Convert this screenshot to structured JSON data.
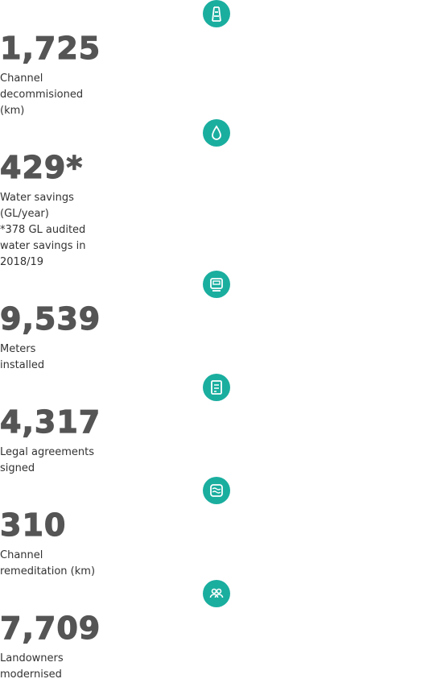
{
  "stats": [
    {
      "value": "1,725",
      "label": [
        "Channel",
        "decommisioned",
        "(km)"
      ]
    },
    {
      "value": "429*",
      "label": [
        "Water savings",
        "(GL/year)",
        "*378 GL audited",
        "water savings in",
        "2018/19"
      ]
    },
    {
      "value": "9,539",
      "label": [
        "Meters",
        "installed"
      ]
    },
    {
      "value": "4,317",
      "label": [
        "Legal agreements",
        "signed"
      ]
    },
    {
      "value": "310",
      "label": [
        "Channel",
        "remeditation (km)"
      ]
    },
    {
      "value": "7,709",
      "label": [
        "Landowners",
        "modernised"
      ]
    }
  ]
}
